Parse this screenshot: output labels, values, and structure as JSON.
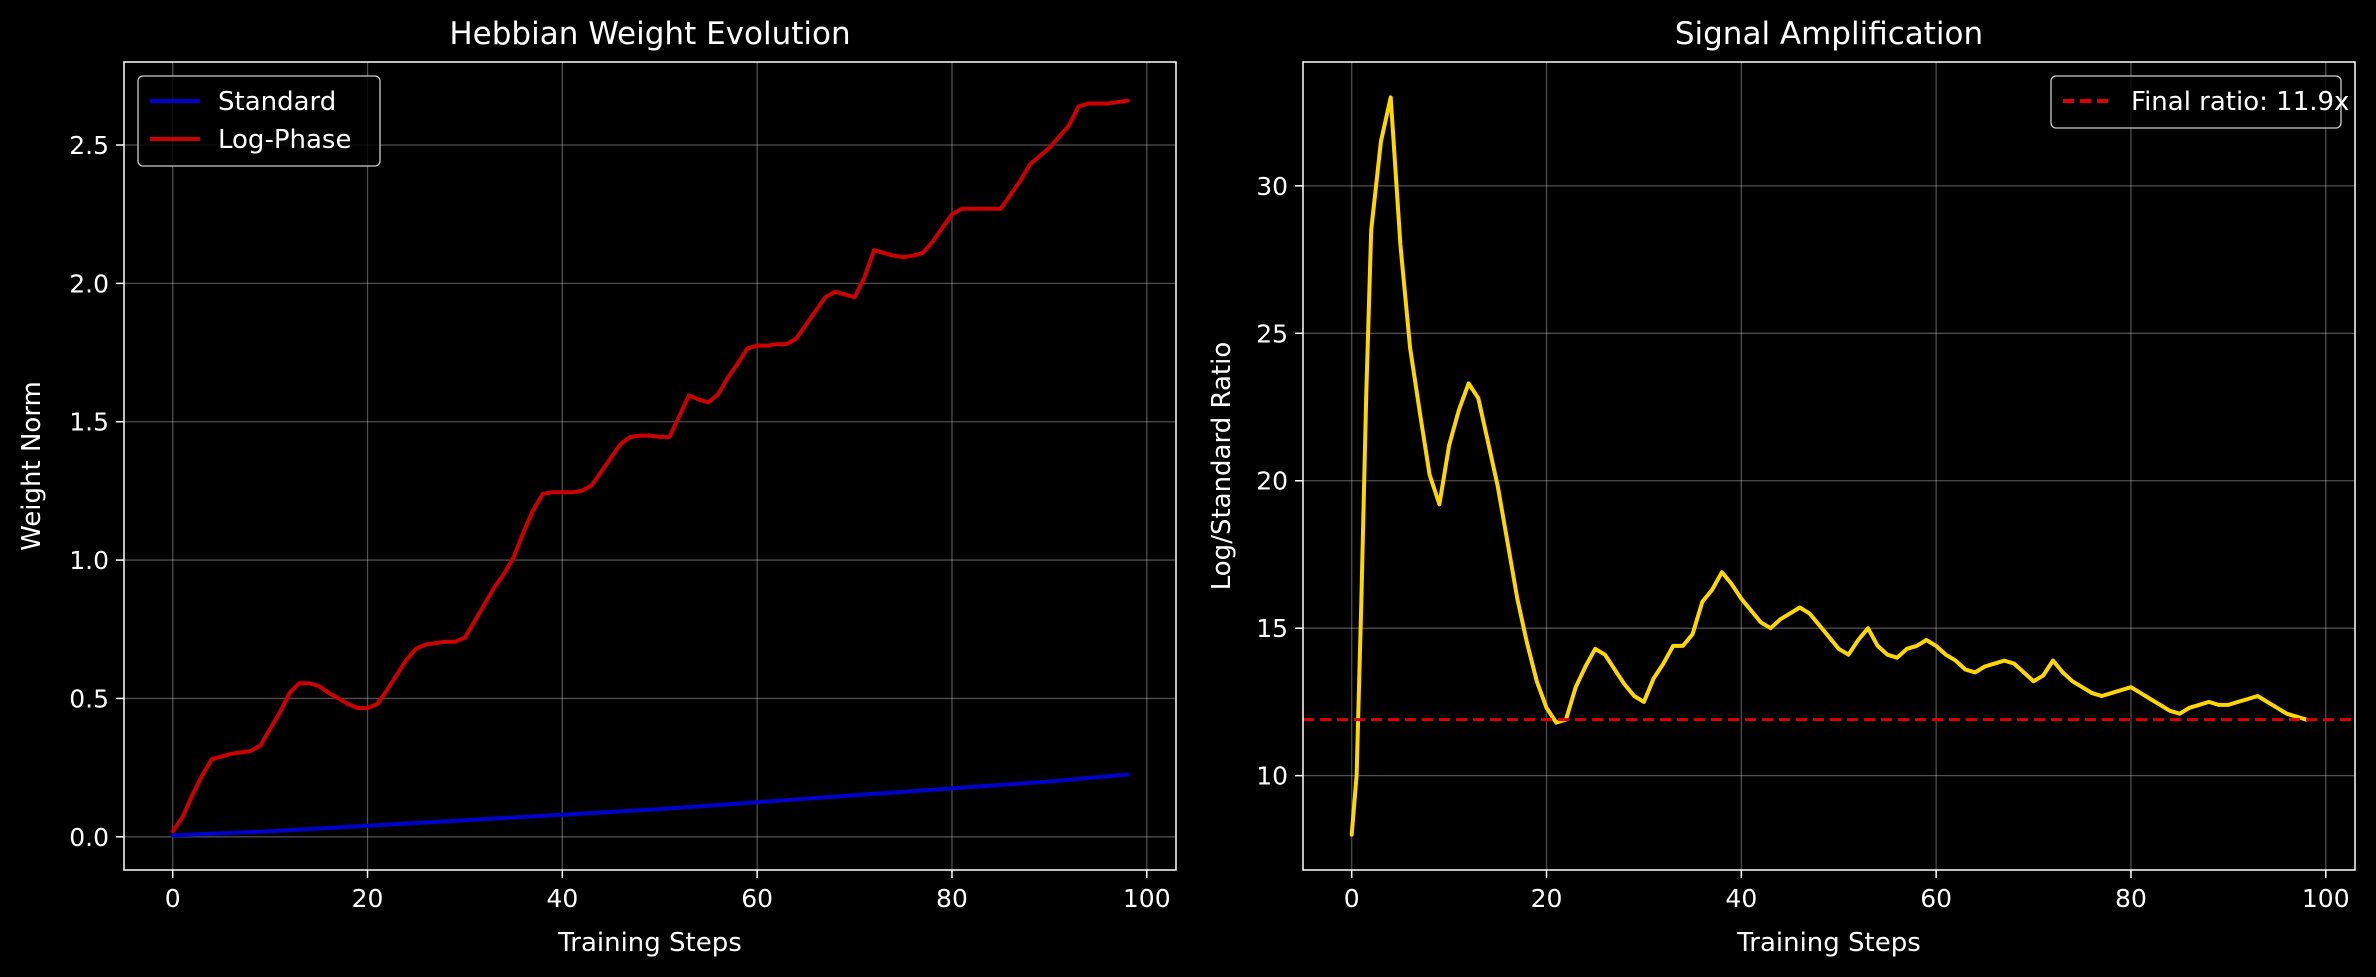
{
  "chart_data": [
    {
      "type": "line",
      "title": "Hebbian Weight Evolution",
      "xlabel": "Training Steps",
      "ylabel": "Weight Norm",
      "xlim": [
        -5,
        103
      ],
      "ylim": [
        -0.12,
        2.8
      ],
      "xticks": [
        0,
        20,
        40,
        60,
        80,
        100
      ],
      "yticks": [
        0.0,
        0.5,
        1.0,
        1.5,
        2.0,
        2.5
      ],
      "ytick_labels": [
        "0.0",
        "0.5",
        "1.0",
        "1.5",
        "2.0",
        "2.5"
      ],
      "grid": true,
      "legend_position": "top-left",
      "series": [
        {
          "name": "Standard",
          "color": "#0000cc",
          "x": [
            0,
            10,
            20,
            30,
            40,
            50,
            60,
            70,
            80,
            90,
            98
          ],
          "y": [
            0.005,
            0.02,
            0.04,
            0.06,
            0.08,
            0.1,
            0.125,
            0.15,
            0.175,
            0.2,
            0.225
          ]
        },
        {
          "name": "Log-Phase",
          "color": "#cc0000",
          "x": [
            0,
            1,
            2,
            3,
            4,
            5,
            6,
            7,
            8,
            9,
            10,
            11,
            12,
            13,
            14,
            15,
            16,
            17,
            18,
            19,
            20,
            21,
            22,
            23,
            24,
            25,
            26,
            27,
            28,
            29,
            30,
            31,
            32,
            33,
            34,
            35,
            36,
            37,
            38,
            39,
            40,
            41,
            42,
            43,
            44,
            45,
            46,
            47,
            48,
            49,
            50,
            51,
            52,
            53,
            54,
            55,
            56,
            57,
            58,
            59,
            60,
            61,
            62,
            63,
            64,
            65,
            66,
            67,
            68,
            69,
            70,
            71,
            72,
            73,
            74,
            75,
            76,
            77,
            78,
            79,
            80,
            81,
            82,
            83,
            84,
            85,
            86,
            87,
            88,
            89,
            90,
            91,
            92,
            93,
            94,
            95,
            96,
            97,
            98
          ],
          "y": [
            0.02,
            0.07,
            0.15,
            0.22,
            0.28,
            0.29,
            0.3,
            0.305,
            0.31,
            0.33,
            0.39,
            0.45,
            0.52,
            0.555,
            0.555,
            0.545,
            0.52,
            0.5,
            0.48,
            0.465,
            0.465,
            0.48,
            0.53,
            0.585,
            0.64,
            0.68,
            0.695,
            0.7,
            0.705,
            0.705,
            0.72,
            0.78,
            0.84,
            0.9,
            0.95,
            1.01,
            1.1,
            1.18,
            1.24,
            1.245,
            1.245,
            1.245,
            1.25,
            1.27,
            1.32,
            1.37,
            1.42,
            1.445,
            1.45,
            1.45,
            1.445,
            1.445,
            1.52,
            1.595,
            1.58,
            1.57,
            1.6,
            1.66,
            1.71,
            1.765,
            1.775,
            1.775,
            1.78,
            1.78,
            1.8,
            1.85,
            1.9,
            1.95,
            1.97,
            1.96,
            1.95,
            2.02,
            2.12,
            2.11,
            2.1,
            2.095,
            2.1,
            2.11,
            2.15,
            2.2,
            2.25,
            2.27,
            2.27,
            2.27,
            2.27,
            2.27,
            2.32,
            2.37,
            2.43,
            2.46,
            2.49,
            2.53,
            2.57,
            2.64,
            2.65,
            2.65,
            2.65,
            2.655,
            2.66
          ]
        }
      ]
    },
    {
      "type": "line",
      "title": "Signal Amplification",
      "xlabel": "Training Steps",
      "ylabel": "Log/Standard Ratio",
      "xlim": [
        -5,
        103
      ],
      "ylim": [
        6.8,
        34.2
      ],
      "xticks": [
        0,
        20,
        40,
        60,
        80,
        100
      ],
      "yticks": [
        10,
        15,
        20,
        25,
        30
      ],
      "ytick_labels": [
        "10",
        "15",
        "20",
        "25",
        "30"
      ],
      "grid": true,
      "legend_position": "top-right",
      "series": [
        {
          "name": "",
          "color": "#ffd700",
          "x": [
            0,
            0.5,
            1,
            1.5,
            2,
            3,
            4,
            5,
            6,
            7,
            8,
            9,
            10,
            11,
            12,
            13,
            14,
            15,
            16,
            17,
            18,
            19,
            20,
            21,
            22,
            23,
            24,
            25,
            26,
            27,
            28,
            29,
            30,
            31,
            32,
            33,
            34,
            35,
            36,
            37,
            38,
            39,
            40,
            41,
            42,
            43,
            44,
            45,
            46,
            47,
            48,
            49,
            50,
            51,
            52,
            53,
            54,
            55,
            56,
            57,
            58,
            59,
            60,
            61,
            62,
            63,
            64,
            65,
            66,
            67,
            68,
            69,
            70,
            71,
            72,
            73,
            74,
            75,
            76,
            77,
            78,
            79,
            80,
            81,
            82,
            83,
            84,
            85,
            86,
            87,
            88,
            89,
            90,
            91,
            92,
            93,
            94,
            95,
            96,
            97,
            98
          ],
          "y": [
            8.0,
            10.0,
            16.0,
            23.0,
            28.5,
            31.5,
            33.0,
            28.0,
            24.5,
            22.3,
            20.2,
            19.2,
            21.2,
            22.4,
            23.3,
            22.8,
            21.3,
            19.8,
            17.9,
            16.0,
            14.5,
            13.2,
            12.3,
            11.8,
            11.9,
            13.0,
            13.7,
            14.3,
            14.1,
            13.6,
            13.1,
            12.7,
            12.5,
            13.3,
            13.8,
            14.4,
            14.4,
            14.8,
            15.9,
            16.3,
            16.9,
            16.5,
            16.0,
            15.6,
            15.2,
            15.0,
            15.3,
            15.5,
            15.7,
            15.5,
            15.1,
            14.7,
            14.3,
            14.1,
            14.6,
            15.0,
            14.4,
            14.1,
            14.0,
            14.3,
            14.4,
            14.6,
            14.4,
            14.1,
            13.9,
            13.6,
            13.5,
            13.7,
            13.8,
            13.9,
            13.8,
            13.5,
            13.2,
            13.4,
            13.9,
            13.5,
            13.2,
            13.0,
            12.8,
            12.7,
            12.8,
            12.9,
            13.0,
            12.8,
            12.6,
            12.4,
            12.2,
            12.1,
            12.3,
            12.4,
            12.5,
            12.4,
            12.4,
            12.5,
            12.6,
            12.7,
            12.5,
            12.3,
            12.1,
            12.0,
            11.9
          ]
        },
        {
          "name": "Final ratio: 11.9x",
          "color": "#dd0000",
          "style": "dashed",
          "y_constant": 11.9
        }
      ]
    }
  ]
}
